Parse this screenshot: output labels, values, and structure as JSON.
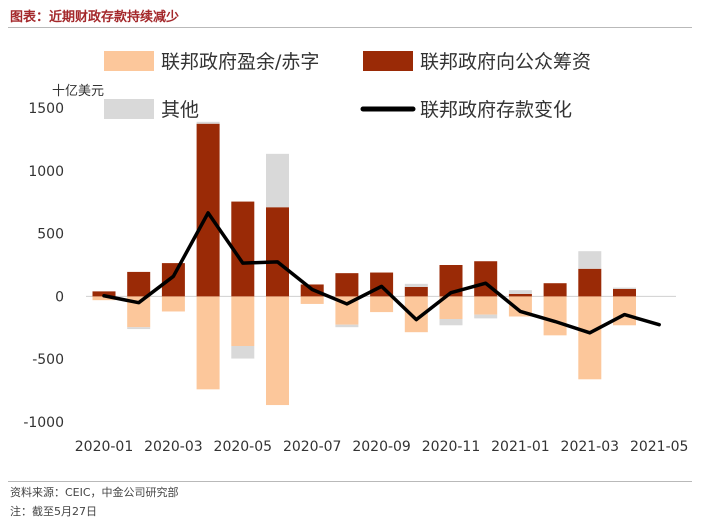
{
  "header": {
    "title": "图表：近期财政存款持续减少"
  },
  "footer": {
    "source": "资料来源：CEIC，中金公司研究部",
    "note": "注：截至5月27日"
  },
  "colors": {
    "surplus": "#fcc79b",
    "debt": "#9a2a06",
    "other": "#d9d9d9",
    "line": "#000000"
  },
  "chart_data": {
    "type": "bar",
    "stacked": true,
    "unit_label": "十亿美元",
    "x": [
      "2020-01",
      "2020-02",
      "2020-03",
      "2020-04",
      "2020-05",
      "2020-06",
      "2020-07",
      "2020-08",
      "2020-09",
      "2020-10",
      "2020-11",
      "2020-12",
      "2021-01",
      "2021-02",
      "2021-03",
      "2021-04",
      "2021-05"
    ],
    "x_tick_labels": [
      "2020-01",
      "2020-03",
      "2020-05",
      "2020-07",
      "2020-09",
      "2020-11",
      "2021-01",
      "2021-03",
      "2021-05"
    ],
    "ylim": [
      -1000,
      1500
    ],
    "y_ticks": [
      1500,
      1000,
      500,
      0,
      -500,
      -1000
    ],
    "legend_position": "top",
    "series": [
      {
        "name": "联邦政府盈余/赤字",
        "kind": "bar",
        "color_key": "surplus",
        "values": [
          -30,
          -245,
          -120,
          -740,
          -395,
          -865,
          -60,
          -225,
          -125,
          -285,
          -180,
          -145,
          -160,
          -310,
          -660,
          -230,
          null
        ]
      },
      {
        "name": "联邦政府向公众筹资",
        "kind": "bar",
        "color_key": "debt",
        "values": [
          40,
          195,
          265,
          1375,
          755,
          710,
          95,
          185,
          190,
          75,
          250,
          280,
          20,
          105,
          220,
          60,
          null
        ]
      },
      {
        "name": "其他",
        "kind": "bar",
        "color_key": "other",
        "values": [
          0,
          -15,
          0,
          15,
          -100,
          425,
          0,
          -20,
          0,
          25,
          -50,
          -30,
          30,
          0,
          140,
          10,
          null
        ]
      },
      {
        "name": "联邦政府存款变化",
        "kind": "line",
        "color_key": "line",
        "values": [
          5,
          -50,
          160,
          665,
          265,
          275,
          55,
          -60,
          80,
          -185,
          30,
          105,
          -120,
          -200,
          -290,
          -145,
          -225
        ]
      }
    ]
  }
}
